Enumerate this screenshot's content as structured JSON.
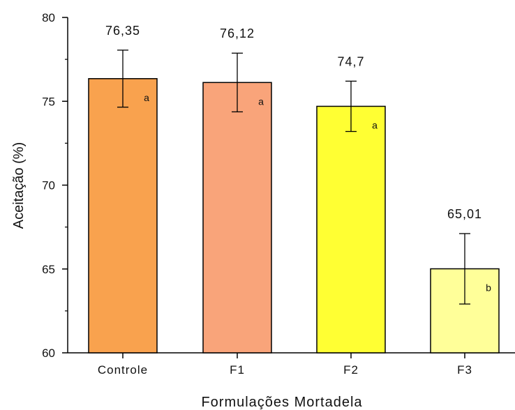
{
  "chart_data": {
    "type": "bar",
    "xlabel": "Formulações Mortadela",
    "ylabel": "Aceitação (%)",
    "ylim": [
      60,
      80
    ],
    "yticks": [
      60,
      65,
      70,
      75,
      80
    ],
    "categories": [
      "Controle",
      "F1",
      "F2",
      "F3"
    ],
    "values": [
      76.35,
      76.12,
      74.7,
      65.01
    ],
    "value_labels": [
      "76,35",
      "76,12",
      "74,7",
      "65,01"
    ],
    "error": [
      1.7,
      1.75,
      1.5,
      2.1
    ],
    "group_letters": [
      "a",
      "a",
      "a",
      "b"
    ],
    "colors": [
      "#F9A24E",
      "#F9A47A",
      "#FFFF33",
      "#FFFF99"
    ],
    "grid": false,
    "legend": "none"
  }
}
